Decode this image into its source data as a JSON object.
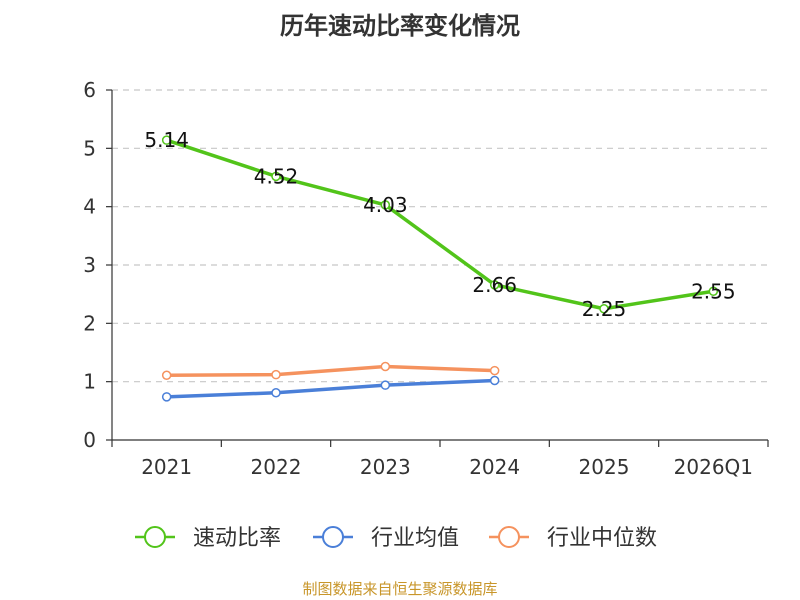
{
  "chart_data": {
    "type": "line",
    "title": "历年速动比率变化情况",
    "categories": [
      "2021",
      "2022",
      "2023",
      "2024",
      "2025",
      "2026Q1"
    ],
    "ylim": [
      0,
      6
    ],
    "yticks": [
      0,
      1,
      2,
      3,
      4,
      5,
      6
    ],
    "grid": true,
    "legend_position": "bottom",
    "series": [
      {
        "name": "速动比率",
        "color": "#52c41a",
        "values": [
          5.14,
          4.52,
          4.03,
          2.66,
          2.25,
          2.55
        ],
        "labels": [
          "5.14",
          "4.52",
          "4.03",
          "2.66",
          "2.25",
          "2.55"
        ]
      },
      {
        "name": "行业均值",
        "color": "#4a7fd8",
        "values": [
          0.74,
          0.81,
          0.94,
          1.02,
          null,
          null
        ]
      },
      {
        "name": "行业中位数",
        "color": "#f5925e",
        "values": [
          1.11,
          1.12,
          1.26,
          1.19,
          null,
          null
        ]
      }
    ]
  },
  "source": "制图数据来自恒生聚源数据库"
}
